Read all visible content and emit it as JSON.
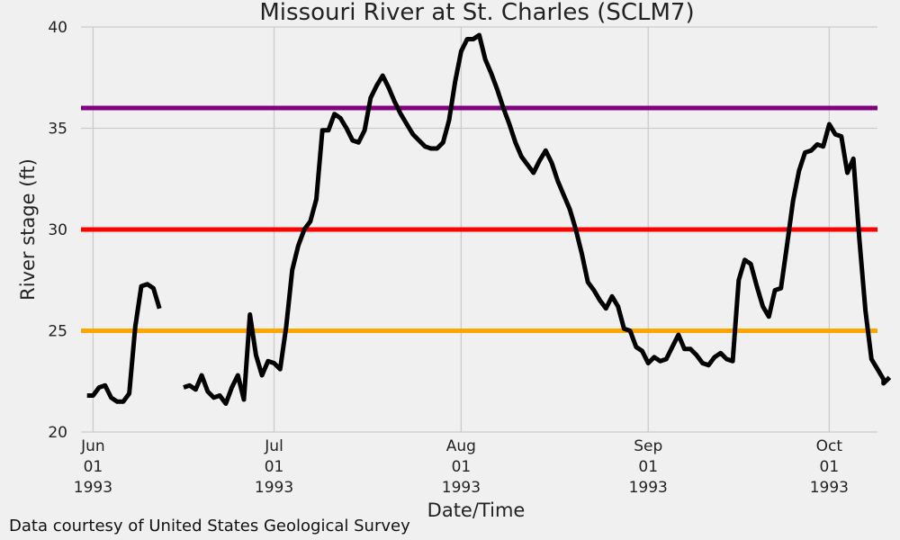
{
  "chart_data": {
    "type": "line",
    "title": "Missouri River at St. Charles (SCLM7)",
    "xlabel": "Date/Time",
    "ylabel": "River stage (ft)",
    "ylim": [
      20,
      40
    ],
    "xlim": [
      "1993-05-30",
      "1993-10-09"
    ],
    "yticks": [
      20,
      25,
      30,
      35,
      40
    ],
    "xticks": [
      {
        "date": "1993-06-01",
        "label": [
          "Jun",
          "01",
          "1993"
        ]
      },
      {
        "date": "1993-07-01",
        "label": [
          "Jul",
          "01",
          "1993"
        ]
      },
      {
        "date": "1993-08-01",
        "label": [
          "Aug",
          "01",
          "1993"
        ]
      },
      {
        "date": "1993-09-01",
        "label": [
          "Sep",
          "01",
          "1993"
        ]
      },
      {
        "date": "1993-10-01",
        "label": [
          "Oct",
          "01",
          "1993"
        ]
      }
    ],
    "grid": true,
    "thresholds": [
      {
        "value": 36,
        "color": "#800080"
      },
      {
        "value": 30,
        "color": "#ff0000"
      },
      {
        "value": 25,
        "color": "#ffa500"
      }
    ],
    "series": [
      {
        "color": "#000000",
        "segments": [
          [
            [
              "1993-05-31",
              21.8
            ],
            [
              "1993-06-01",
              21.8
            ],
            [
              "1993-06-02",
              22.2
            ],
            [
              "1993-06-03",
              22.3
            ],
            [
              "1993-06-04",
              21.7
            ],
            [
              "1993-06-05",
              21.5
            ],
            [
              "1993-06-06",
              21.5
            ],
            [
              "1993-06-07",
              21.9
            ],
            [
              "1993-06-08",
              25.2
            ],
            [
              "1993-06-09",
              27.2
            ],
            [
              "1993-06-10",
              27.3
            ],
            [
              "1993-06-11",
              27.1
            ],
            [
              "1993-06-12",
              26.1
            ]
          ],
          [
            [
              "1993-06-16",
              22.2
            ],
            [
              "1993-06-17",
              22.3
            ],
            [
              "1993-06-18",
              22.1
            ],
            [
              "1993-06-19",
              22.8
            ],
            [
              "1993-06-20",
              22.0
            ],
            [
              "1993-06-21",
              21.7
            ],
            [
              "1993-06-22",
              21.8
            ],
            [
              "1993-06-23",
              21.4
            ],
            [
              "1993-06-24",
              22.2
            ],
            [
              "1993-06-25",
              22.8
            ],
            [
              "1993-06-26",
              21.6
            ],
            [
              "1993-06-27",
              25.8
            ],
            [
              "1993-06-28",
              23.8
            ],
            [
              "1993-06-29",
              22.8
            ],
            [
              "1993-06-30",
              23.5
            ],
            [
              "1993-07-01",
              23.4
            ],
            [
              "1993-07-02",
              23.1
            ],
            [
              "1993-07-03",
              25.2
            ],
            [
              "1993-07-04",
              28.0
            ],
            [
              "1993-07-05",
              29.2
            ],
            [
              "1993-07-06",
              30.0
            ],
            [
              "1993-07-07",
              30.4
            ],
            [
              "1993-07-08",
              31.5
            ],
            [
              "1993-07-09",
              34.9
            ],
            [
              "1993-07-10",
              34.9
            ],
            [
              "1993-07-11",
              35.7
            ],
            [
              "1993-07-12",
              35.5
            ],
            [
              "1993-07-13",
              35.0
            ],
            [
              "1993-07-14",
              34.4
            ],
            [
              "1993-07-15",
              34.3
            ],
            [
              "1993-07-16",
              34.9
            ],
            [
              "1993-07-17",
              36.5
            ],
            [
              "1993-07-18",
              37.1
            ],
            [
              "1993-07-19",
              37.6
            ],
            [
              "1993-07-20",
              37.0
            ],
            [
              "1993-07-21",
              36.3
            ],
            [
              "1993-07-22",
              35.7
            ],
            [
              "1993-07-23",
              35.2
            ],
            [
              "1993-07-24",
              34.7
            ],
            [
              "1993-07-25",
              34.4
            ],
            [
              "1993-07-26",
              34.1
            ],
            [
              "1993-07-27",
              34.0
            ],
            [
              "1993-07-28",
              34.0
            ],
            [
              "1993-07-29",
              34.3
            ],
            [
              "1993-07-30",
              35.4
            ],
            [
              "1993-07-31",
              37.3
            ],
            [
              "1993-08-01",
              38.8
            ],
            [
              "1993-08-02",
              39.4
            ],
            [
              "1993-08-03",
              39.4
            ],
            [
              "1993-08-04",
              39.6
            ],
            [
              "1993-08-05",
              38.4
            ],
            [
              "1993-08-06",
              37.7
            ],
            [
              "1993-08-07",
              36.9
            ],
            [
              "1993-08-08",
              36.0
            ],
            [
              "1993-08-09",
              35.2
            ],
            [
              "1993-08-10",
              34.3
            ],
            [
              "1993-08-11",
              33.6
            ],
            [
              "1993-08-12",
              33.2
            ],
            [
              "1993-08-13",
              32.8
            ],
            [
              "1993-08-14",
              33.4
            ],
            [
              "1993-08-15",
              33.9
            ],
            [
              "1993-08-16",
              33.3
            ],
            [
              "1993-08-17",
              32.4
            ],
            [
              "1993-08-18",
              31.7
            ],
            [
              "1993-08-19",
              31.0
            ],
            [
              "1993-08-20",
              30.0
            ],
            [
              "1993-08-21",
              28.8
            ],
            [
              "1993-08-22",
              27.4
            ],
            [
              "1993-08-23",
              27.0
            ],
            [
              "1993-08-24",
              26.5
            ],
            [
              "1993-08-25",
              26.1
            ],
            [
              "1993-08-26",
              26.7
            ],
            [
              "1993-08-27",
              26.2
            ],
            [
              "1993-08-28",
              25.1
            ],
            [
              "1993-08-29",
              25.0
            ],
            [
              "1993-08-30",
              24.2
            ],
            [
              "1993-08-31",
              24.0
            ],
            [
              "1993-09-01",
              23.4
            ],
            [
              "1993-09-02",
              23.7
            ],
            [
              "1993-09-03",
              23.5
            ],
            [
              "1993-09-04",
              23.6
            ],
            [
              "1993-09-05",
              24.2
            ],
            [
              "1993-09-06",
              24.8
            ],
            [
              "1993-09-07",
              24.1
            ],
            [
              "1993-09-08",
              24.1
            ],
            [
              "1993-09-09",
              23.8
            ],
            [
              "1993-09-10",
              23.4
            ],
            [
              "1993-09-11",
              23.3
            ],
            [
              "1993-09-12",
              23.7
            ],
            [
              "1993-09-13",
              23.9
            ],
            [
              "1993-09-14",
              23.6
            ],
            [
              "1993-09-15",
              23.5
            ],
            [
              "1993-09-16",
              27.5
            ],
            [
              "1993-09-17",
              28.5
            ],
            [
              "1993-09-18",
              28.3
            ],
            [
              "1993-09-19",
              27.2
            ],
            [
              "1993-09-20",
              26.2
            ],
            [
              "1993-09-21",
              25.7
            ],
            [
              "1993-09-22",
              27.0
            ],
            [
              "1993-09-23",
              27.1
            ],
            [
              "1993-09-24",
              29.2
            ],
            [
              "1993-09-25",
              31.4
            ],
            [
              "1993-09-26",
              32.9
            ],
            [
              "1993-09-27",
              33.8
            ],
            [
              "1993-09-28",
              33.9
            ],
            [
              "1993-09-29",
              34.2
            ],
            [
              "1993-09-30",
              34.1
            ],
            [
              "1993-10-01",
              35.2
            ],
            [
              "1993-10-02",
              34.7
            ],
            [
              "1993-10-03",
              34.6
            ],
            [
              "1993-10-04",
              32.8
            ],
            [
              "1993-10-05",
              33.5
            ],
            [
              "1993-10-06",
              29.5
            ],
            [
              "1993-10-07",
              26.0
            ],
            [
              "1993-10-08",
              23.6
            ],
            [
              "1993-10-09",
              23.1
            ],
            [
              "1993-10-10",
              22.6
            ],
            [
              "1993-10-10",
              22.4
            ],
            [
              "1993-10-11",
              22.7
            ]
          ]
        ]
      }
    ]
  },
  "footer": {
    "credit": "Data courtesy of United States Geological Survey"
  }
}
